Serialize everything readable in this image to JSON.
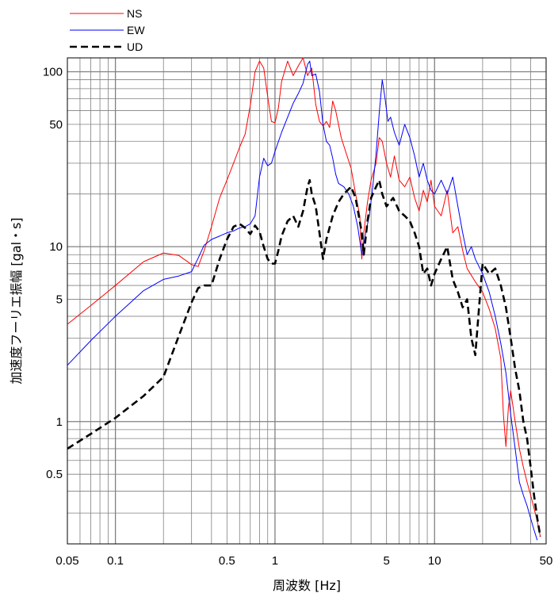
{
  "chart_data": {
    "type": "line",
    "xscale": "log",
    "yscale": "log",
    "xlim": [
      0.05,
      50
    ],
    "ylim": [
      0.2,
      120
    ],
    "xlabel": "周波数 [Hz]",
    "ylabel": "加速度フーリエ振幅 [gal・s]",
    "grid": true,
    "legend_position": "top-left",
    "xticks": [
      {
        "value": 0.05,
        "label": "0.05"
      },
      {
        "value": 0.1,
        "label": "0.1"
      },
      {
        "value": 0.5,
        "label": "0.5"
      },
      {
        "value": 1,
        "label": "1"
      },
      {
        "value": 5,
        "label": "5"
      },
      {
        "value": 10,
        "label": "10"
      },
      {
        "value": 50,
        "label": "50"
      }
    ],
    "yticks": [
      {
        "value": 0.5,
        "label": "0.5"
      },
      {
        "value": 1,
        "label": "1"
      },
      {
        "value": 5,
        "label": "5"
      },
      {
        "value": 10,
        "label": "10"
      },
      {
        "value": 50,
        "label": "50"
      },
      {
        "value": 100,
        "label": "100"
      }
    ],
    "series": [
      {
        "name": "NS",
        "color": "#ff0000",
        "dash": "solid",
        "points": [
          [
            0.05,
            3.6
          ],
          [
            0.07,
            4.6
          ],
          [
            0.1,
            6.0
          ],
          [
            0.15,
            8.2
          ],
          [
            0.2,
            9.2
          ],
          [
            0.25,
            8.9
          ],
          [
            0.3,
            7.9
          ],
          [
            0.33,
            7.7
          ],
          [
            0.36,
            9.5
          ],
          [
            0.4,
            13
          ],
          [
            0.45,
            19
          ],
          [
            0.5,
            24
          ],
          [
            0.55,
            30
          ],
          [
            0.6,
            37
          ],
          [
            0.65,
            44
          ],
          [
            0.7,
            64
          ],
          [
            0.75,
            100
          ],
          [
            0.8,
            115
          ],
          [
            0.85,
            105
          ],
          [
            0.9,
            72
          ],
          [
            0.95,
            52
          ],
          [
            1.0,
            51
          ],
          [
            1.05,
            62
          ],
          [
            1.1,
            88
          ],
          [
            1.2,
            115
          ],
          [
            1.3,
            95
          ],
          [
            1.4,
            108
          ],
          [
            1.5,
            120
          ],
          [
            1.6,
            95
          ],
          [
            1.7,
            105
          ],
          [
            1.8,
            65
          ],
          [
            1.9,
            52
          ],
          [
            2.0,
            49
          ],
          [
            2.1,
            52
          ],
          [
            2.2,
            48
          ],
          [
            2.3,
            68
          ],
          [
            2.4,
            60
          ],
          [
            2.5,
            50
          ],
          [
            2.6,
            42
          ],
          [
            2.8,
            34
          ],
          [
            3.0,
            28
          ],
          [
            3.2,
            20
          ],
          [
            3.4,
            15
          ],
          [
            3.5,
            8.5
          ],
          [
            3.6,
            12
          ],
          [
            3.8,
            18
          ],
          [
            4.0,
            24
          ],
          [
            4.3,
            30
          ],
          [
            4.5,
            42
          ],
          [
            4.7,
            40
          ],
          [
            5.0,
            30
          ],
          [
            5.3,
            25
          ],
          [
            5.6,
            33
          ],
          [
            6.0,
            24
          ],
          [
            6.5,
            22
          ],
          [
            7.0,
            25
          ],
          [
            7.5,
            19
          ],
          [
            8.0,
            16
          ],
          [
            8.5,
            21
          ],
          [
            9.0,
            18
          ],
          [
            9.5,
            24
          ],
          [
            10,
            17
          ],
          [
            11,
            15
          ],
          [
            12,
            21
          ],
          [
            13,
            12
          ],
          [
            14,
            13
          ],
          [
            15,
            9.5
          ],
          [
            16,
            7.5
          ],
          [
            18,
            6.3
          ],
          [
            20,
            5.5
          ],
          [
            22,
            4.4
          ],
          [
            24,
            3.4
          ],
          [
            26,
            2.3
          ],
          [
            27,
            1.1
          ],
          [
            28,
            0.72
          ],
          [
            29,
            1.2
          ],
          [
            30,
            1.5
          ],
          [
            32,
            1.0
          ],
          [
            34,
            0.7
          ],
          [
            36,
            0.55
          ],
          [
            38,
            0.45
          ],
          [
            40,
            0.38
          ],
          [
            42,
            0.32
          ],
          [
            44,
            0.27
          ],
          [
            46,
            0.22
          ]
        ]
      },
      {
        "name": "EW",
        "color": "#0000ff",
        "dash": "solid",
        "points": [
          [
            0.05,
            2.1
          ],
          [
            0.07,
            2.9
          ],
          [
            0.1,
            4.0
          ],
          [
            0.15,
            5.6
          ],
          [
            0.2,
            6.5
          ],
          [
            0.25,
            6.8
          ],
          [
            0.3,
            7.2
          ],
          [
            0.33,
            8.6
          ],
          [
            0.36,
            10.2
          ],
          [
            0.4,
            11
          ],
          [
            0.45,
            11.5
          ],
          [
            0.5,
            12
          ],
          [
            0.55,
            12.3
          ],
          [
            0.6,
            12.8
          ],
          [
            0.65,
            13
          ],
          [
            0.7,
            13.5
          ],
          [
            0.75,
            15
          ],
          [
            0.8,
            25
          ],
          [
            0.85,
            32
          ],
          [
            0.9,
            29
          ],
          [
            0.95,
            30
          ],
          [
            1.0,
            35
          ],
          [
            1.1,
            45
          ],
          [
            1.2,
            55
          ],
          [
            1.3,
            66
          ],
          [
            1.4,
            75
          ],
          [
            1.5,
            86
          ],
          [
            1.6,
            110
          ],
          [
            1.65,
            115
          ],
          [
            1.7,
            95
          ],
          [
            1.8,
            97
          ],
          [
            1.9,
            77
          ],
          [
            2.0,
            50
          ],
          [
            2.1,
            40
          ],
          [
            2.2,
            38
          ],
          [
            2.3,
            32
          ],
          [
            2.4,
            26
          ],
          [
            2.5,
            23
          ],
          [
            2.7,
            22
          ],
          [
            2.9,
            20
          ],
          [
            3.1,
            17
          ],
          [
            3.3,
            13
          ],
          [
            3.5,
            9
          ],
          [
            3.7,
            12
          ],
          [
            3.9,
            15
          ],
          [
            4.1,
            22
          ],
          [
            4.3,
            34
          ],
          [
            4.5,
            58
          ],
          [
            4.7,
            90
          ],
          [
            4.9,
            70
          ],
          [
            5.1,
            52
          ],
          [
            5.3,
            55
          ],
          [
            5.6,
            45
          ],
          [
            6.0,
            38
          ],
          [
            6.5,
            50
          ],
          [
            7.0,
            42
          ],
          [
            7.5,
            33
          ],
          [
            8.0,
            25
          ],
          [
            8.5,
            30
          ],
          [
            9.0,
            24
          ],
          [
            9.5,
            21
          ],
          [
            10,
            20
          ],
          [
            11,
            24
          ],
          [
            12,
            20
          ],
          [
            13,
            25
          ],
          [
            14,
            17
          ],
          [
            15,
            12
          ],
          [
            16,
            9
          ],
          [
            17,
            10
          ],
          [
            18,
            8.5
          ],
          [
            20,
            7
          ],
          [
            22,
            5.5
          ],
          [
            24,
            4
          ],
          [
            26,
            2.8
          ],
          [
            28,
            1.9
          ],
          [
            30,
            1.1
          ],
          [
            32,
            0.7
          ],
          [
            34,
            0.45
          ],
          [
            36,
            0.38
          ],
          [
            38,
            0.33
          ],
          [
            40,
            0.28
          ],
          [
            42,
            0.24
          ],
          [
            44,
            0.21
          ]
        ]
      },
      {
        "name": "UD",
        "color": "#000000",
        "dash": "dashed",
        "points": [
          [
            0.05,
            0.7
          ],
          [
            0.07,
            0.85
          ],
          [
            0.1,
            1.05
          ],
          [
            0.15,
            1.4
          ],
          [
            0.2,
            1.8
          ],
          [
            0.25,
            3.1
          ],
          [
            0.3,
            4.8
          ],
          [
            0.33,
            5.8
          ],
          [
            0.36,
            6.0
          ],
          [
            0.4,
            6.0
          ],
          [
            0.45,
            8.5
          ],
          [
            0.5,
            11.0
          ],
          [
            0.55,
            13.0
          ],
          [
            0.6,
            13.5
          ],
          [
            0.65,
            12.8
          ],
          [
            0.7,
            11.8
          ],
          [
            0.75,
            13.2
          ],
          [
            0.8,
            12.2
          ],
          [
            0.85,
            10
          ],
          [
            0.9,
            8.5
          ],
          [
            0.95,
            8.0
          ],
          [
            1.0,
            8.0
          ],
          [
            1.05,
            9.5
          ],
          [
            1.1,
            11.5
          ],
          [
            1.2,
            14.0
          ],
          [
            1.3,
            15
          ],
          [
            1.4,
            13
          ],
          [
            1.5,
            16
          ],
          [
            1.6,
            22
          ],
          [
            1.65,
            24
          ],
          [
            1.7,
            20
          ],
          [
            1.8,
            17
          ],
          [
            1.9,
            12
          ],
          [
            2.0,
            8.5
          ],
          [
            2.1,
            11
          ],
          [
            2.3,
            15
          ],
          [
            2.5,
            18
          ],
          [
            2.7,
            20
          ],
          [
            3.0,
            22
          ],
          [
            3.2,
            19
          ],
          [
            3.5,
            12
          ],
          [
            3.6,
            9
          ],
          [
            3.8,
            14
          ],
          [
            4.0,
            19
          ],
          [
            4.3,
            22
          ],
          [
            4.5,
            24
          ],
          [
            4.7,
            20
          ],
          [
            5.0,
            17
          ],
          [
            5.5,
            19
          ],
          [
            6.0,
            16
          ],
          [
            6.5,
            15
          ],
          [
            7.0,
            14
          ],
          [
            7.5,
            12
          ],
          [
            8.0,
            10
          ],
          [
            8.5,
            7
          ],
          [
            9.0,
            7.5
          ],
          [
            9.5,
            6
          ],
          [
            10,
            7
          ],
          [
            11,
            8.5
          ],
          [
            12,
            10
          ],
          [
            13,
            6.5
          ],
          [
            14,
            5.5
          ],
          [
            15,
            4.5
          ],
          [
            16,
            5
          ],
          [
            17,
            3
          ],
          [
            18,
            2.4
          ],
          [
            19,
            4.5
          ],
          [
            20,
            8
          ],
          [
            22,
            7
          ],
          [
            24,
            7.5
          ],
          [
            26,
            6
          ],
          [
            28,
            4.5
          ],
          [
            30,
            3
          ],
          [
            32,
            2
          ],
          [
            34,
            1.5
          ],
          [
            36,
            1
          ],
          [
            38,
            0.8
          ],
          [
            40,
            0.55
          ],
          [
            42,
            0.38
          ],
          [
            44,
            0.28
          ],
          [
            46,
            0.22
          ]
        ]
      }
    ]
  }
}
